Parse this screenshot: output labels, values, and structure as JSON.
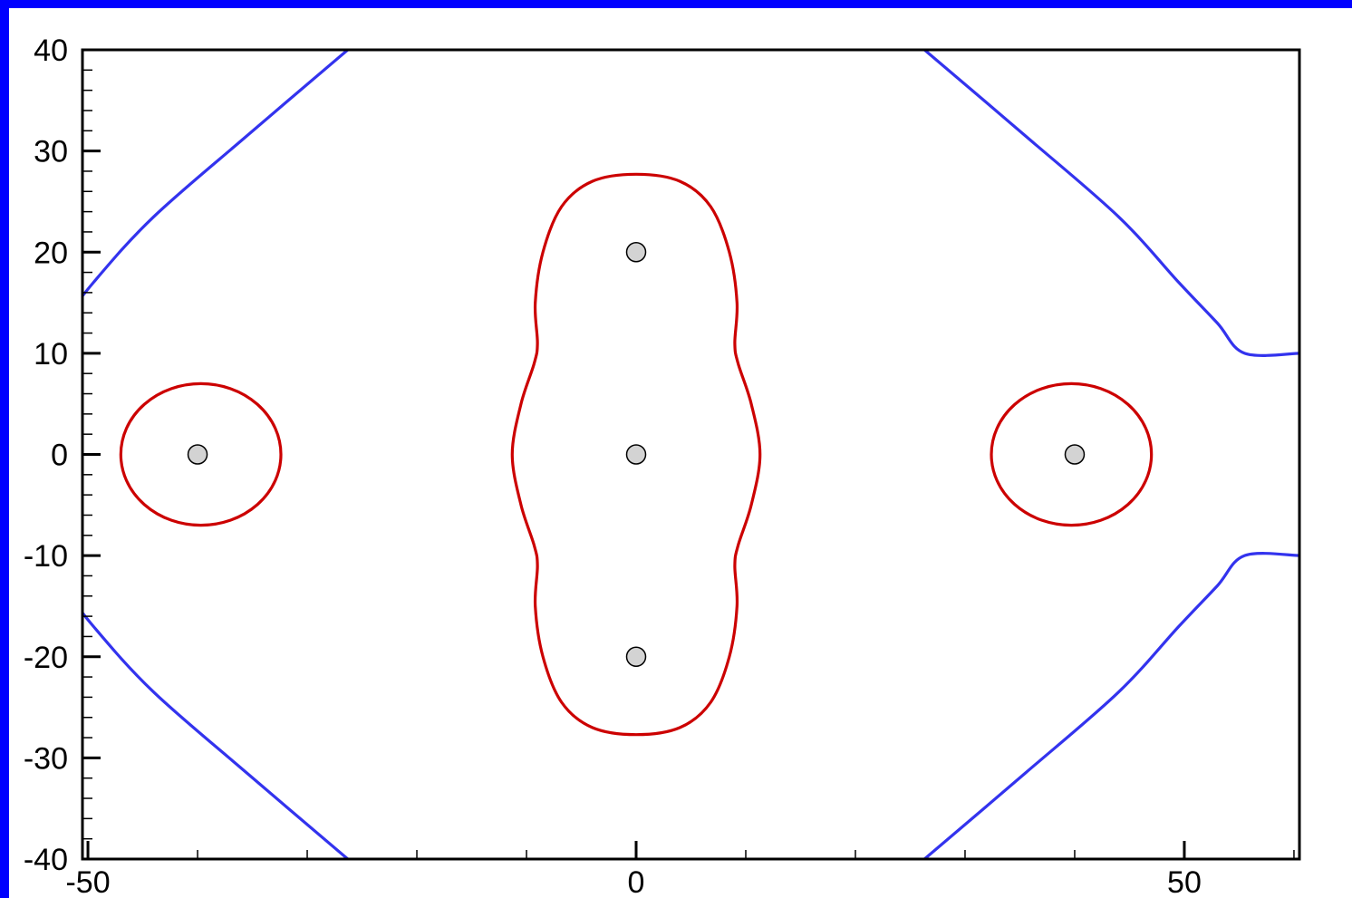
{
  "chart_data": {
    "type": "line",
    "title": "",
    "xlabel": "",
    "ylabel": "",
    "xlim": [
      -50.5,
      60.5
    ],
    "ylim": [
      -40,
      40
    ],
    "x_ticks": [
      -50,
      0,
      50
    ],
    "x_tick_labels": [
      "-50",
      "0",
      "50"
    ],
    "y_ticks": [
      40,
      30,
      20,
      10,
      0,
      -10,
      -20,
      -30,
      -40
    ],
    "y_tick_labels": [
      "40",
      "30",
      "20",
      "10",
      "0",
      "-10",
      "-20",
      "-30",
      "-40"
    ],
    "grid": false,
    "legend": "none",
    "colors": {
      "frame_border": "#0000ff",
      "inner_contour": "#cc0000",
      "outer_contour": "#3333ee",
      "marker_fill": "#d3d3d3",
      "axes": "#000000"
    },
    "markers": [
      {
        "x": -40,
        "y": 0
      },
      {
        "x": 0,
        "y": 20
      },
      {
        "x": 0,
        "y": 0
      },
      {
        "x": 0,
        "y": -20
      },
      {
        "x": 40,
        "y": 0
      }
    ],
    "series": [
      {
        "shape": "circle",
        "color": "#cc0000",
        "cx": -39.7,
        "cy": 0,
        "rx": 7.3,
        "ry": 7.0
      },
      {
        "shape": "circle",
        "color": "#cc0000",
        "cx": 39.7,
        "cy": 0,
        "rx": 7.3,
        "ry": 7.0
      },
      {
        "shape": "closed",
        "color": "#cc0000",
        "points": [
          [
            0,
            27.7
          ],
          [
            -4,
            27
          ],
          [
            -6.8,
            24.5
          ],
          [
            -8.5,
            20
          ],
          [
            -9.2,
            15
          ],
          [
            -9.0,
            11
          ],
          [
            -9.3,
            9
          ],
          [
            -10.5,
            5
          ],
          [
            -11.3,
            0
          ],
          [
            -10.5,
            -5
          ],
          [
            -9.3,
            -9
          ],
          [
            -9.0,
            -11
          ],
          [
            -9.2,
            -15
          ],
          [
            -8.5,
            -20
          ],
          [
            -6.8,
            -24.5
          ],
          [
            -4,
            -27
          ],
          [
            0,
            -27.7
          ],
          [
            4,
            -27
          ],
          [
            6.8,
            -24.5
          ],
          [
            8.5,
            -20
          ],
          [
            9.2,
            -15
          ],
          [
            9.0,
            -11
          ],
          [
            9.3,
            -9
          ],
          [
            10.5,
            -5
          ],
          [
            11.3,
            0
          ],
          [
            10.5,
            5
          ],
          [
            9.3,
            9
          ],
          [
            9.0,
            11
          ],
          [
            9.2,
            15
          ],
          [
            8.5,
            20
          ],
          [
            6.8,
            24.5
          ],
          [
            4,
            27
          ]
        ]
      },
      {
        "shape": "open",
        "color": "#3333ee",
        "points": [
          [
            -26.3,
            40
          ],
          [
            -35.5,
            31.5
          ],
          [
            -44,
            23.5
          ],
          [
            -49.5,
            17
          ],
          [
            -53,
            12
          ],
          [
            -55.5,
            8
          ],
          [
            -57,
            5
          ],
          [
            -57.5,
            3
          ]
        ]
      },
      {
        "shape": "open",
        "color": "#3333ee",
        "points": [
          [
            -57.5,
            -3
          ],
          [
            -57,
            -5
          ],
          [
            -55.5,
            -8
          ],
          [
            -53,
            -12
          ],
          [
            -49.5,
            -17
          ],
          [
            -44,
            -23.5
          ],
          [
            -35.5,
            -31.5
          ],
          [
            -26.3,
            -40
          ]
        ]
      },
      {
        "shape": "open",
        "color": "#3333ee",
        "points": [
          [
            26.3,
            40
          ],
          [
            35.5,
            31.5
          ],
          [
            44,
            23.5
          ],
          [
            49.5,
            17
          ],
          [
            53,
            13
          ],
          [
            55.5,
            10
          ],
          [
            60.5,
            10
          ]
        ]
      },
      {
        "shape": "open",
        "color": "#3333ee",
        "points": [
          [
            60.5,
            -10
          ],
          [
            55.5,
            -10
          ],
          [
            53,
            -13
          ],
          [
            49.5,
            -17
          ],
          [
            44,
            -23.5
          ],
          [
            35.5,
            -31.5
          ],
          [
            26.3,
            -40
          ]
        ]
      }
    ]
  }
}
